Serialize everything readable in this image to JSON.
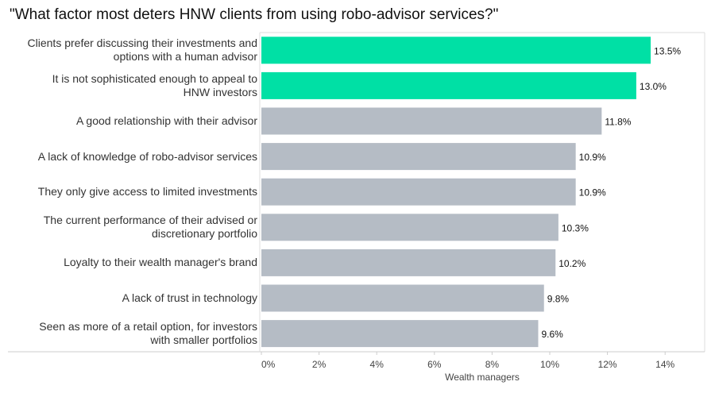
{
  "chart_data": {
    "type": "bar",
    "orientation": "horizontal",
    "title": "\"What factor most deters HNW clients from using robo-advisor services?\"",
    "xlabel": "Wealth managers",
    "ylabel": "",
    "xlim": [
      0,
      15
    ],
    "ticks": [
      "0%",
      "2%",
      "4%",
      "6%",
      "8%",
      "10%",
      "12%",
      "14%"
    ],
    "tick_values": [
      0,
      2,
      4,
      6,
      8,
      10,
      12,
      14
    ],
    "grid": false,
    "colors": {
      "highlight": "#00e0a5",
      "default": "#b5bcc5"
    },
    "categories": [
      "Clients prefer discussing their investments and options with a human advisor",
      "It is not sophisticated enough to appeal to HNW investors",
      "A good relationship with their advisor",
      "A lack of knowledge of robo-advisor services",
      "They only give access to limited investments",
      "The current performance of their advised or discretionary portfolio",
      "Loyalty to their wealth manager's brand",
      "A lack of trust in technology",
      "Seen as more of a retail option, for investors with smaller portfolios"
    ],
    "category_lines": [
      [
        "Clients prefer discussing their investments and",
        "options with a human advisor"
      ],
      [
        "It is not sophisticated enough to appeal to",
        "HNW investors"
      ],
      [
        "A good relationship with their advisor"
      ],
      [
        "A lack of knowledge of robo-advisor services"
      ],
      [
        "They only give access to limited investments"
      ],
      [
        "The current performance of their advised or",
        "discretionary portfolio"
      ],
      [
        "Loyalty to their wealth manager's brand"
      ],
      [
        "A lack of trust in technology"
      ],
      [
        "Seen as more of a retail option, for investors",
        "with smaller portfolios"
      ]
    ],
    "values": [
      13.5,
      13.0,
      11.8,
      10.9,
      10.9,
      10.3,
      10.2,
      9.8,
      9.6
    ],
    "value_labels": [
      "13.5%",
      "13.0%",
      "11.8%",
      "10.9%",
      "10.9%",
      "10.3%",
      "10.2%",
      "9.8%",
      "9.6%"
    ],
    "highlighted": [
      true,
      true,
      false,
      false,
      false,
      false,
      false,
      false,
      false
    ]
  }
}
